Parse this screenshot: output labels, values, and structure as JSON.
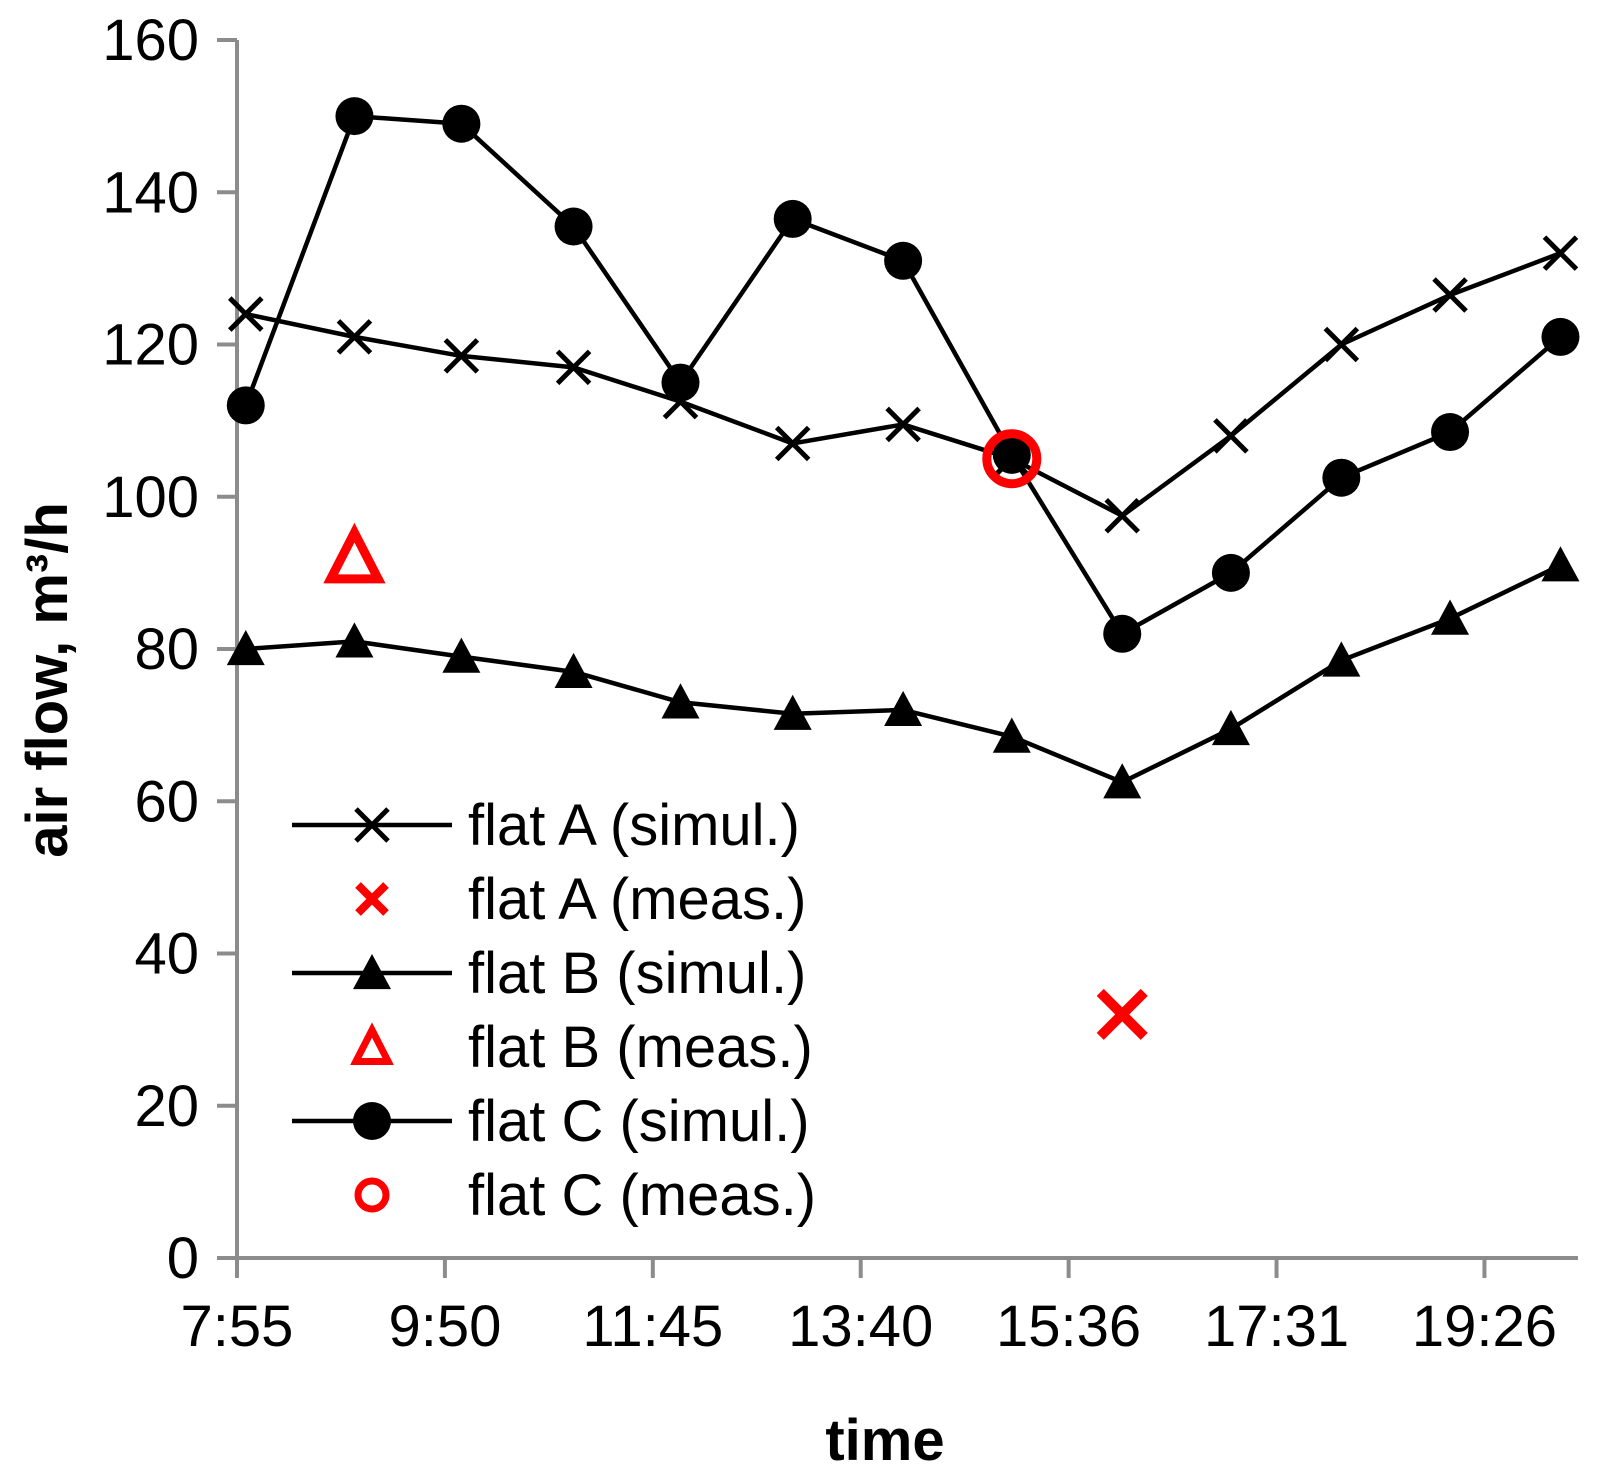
{
  "chart_data": {
    "type": "line",
    "title": "",
    "xlabel": "time",
    "ylabel": "air flow, m³/h",
    "ylim": [
      0,
      160
    ],
    "yticks": [
      "0",
      "20",
      "40",
      "60",
      "80",
      "100",
      "120",
      "140",
      "160"
    ],
    "xticks": [
      "7:55",
      "9:50",
      "11:45",
      "13:40",
      "15:36",
      "17:31",
      "19:26"
    ],
    "x_minutes_range": [
      475,
      1240
    ],
    "grid": false,
    "legend_position": "bottom-left",
    "series": [
      {
        "name": "flat A (simul.)",
        "marker": "x",
        "color": "#000000",
        "line": true,
        "x": [
          480,
          542,
          603,
          667,
          728,
          792,
          855,
          917,
          980,
          1042,
          1105,
          1167,
          1230
        ],
        "values": [
          124,
          121,
          118.5,
          117,
          112.5,
          107,
          109.5,
          105,
          97.5,
          108,
          120,
          126.5,
          132
        ]
      },
      {
        "name": "flat A (meas.)",
        "marker": "x-bold",
        "color": "#ff0000",
        "line": false,
        "x": [
          980
        ],
        "values": [
          32
        ]
      },
      {
        "name": "flat B (simul.)",
        "marker": "triangle",
        "color": "#000000",
        "line": true,
        "x": [
          480,
          542,
          603,
          667,
          728,
          792,
          855,
          917,
          980,
          1042,
          1105,
          1167,
          1230
        ],
        "values": [
          80,
          81,
          79,
          77,
          73,
          71.5,
          72,
          68.5,
          62.5,
          69.5,
          78.5,
          84,
          91
        ]
      },
      {
        "name": "flat B (meas.)",
        "marker": "triangle-open",
        "color": "#ff0000",
        "line": false,
        "x": [
          542
        ],
        "values": [
          92
        ]
      },
      {
        "name": "flat C (simul.)",
        "marker": "circle",
        "color": "#000000",
        "line": true,
        "x": [
          480,
          542,
          603,
          667,
          728,
          792,
          855,
          917,
          980,
          1042,
          1105,
          1167,
          1230
        ],
        "values": [
          112,
          150,
          149,
          135.5,
          115,
          136.5,
          131,
          105.5,
          82,
          90,
          102.5,
          108.5,
          121
        ]
      },
      {
        "name": "flat C (meas.)",
        "marker": "circle-open",
        "color": "#ff0000",
        "line": false,
        "x": [
          917
        ],
        "values": [
          105
        ]
      }
    ]
  }
}
